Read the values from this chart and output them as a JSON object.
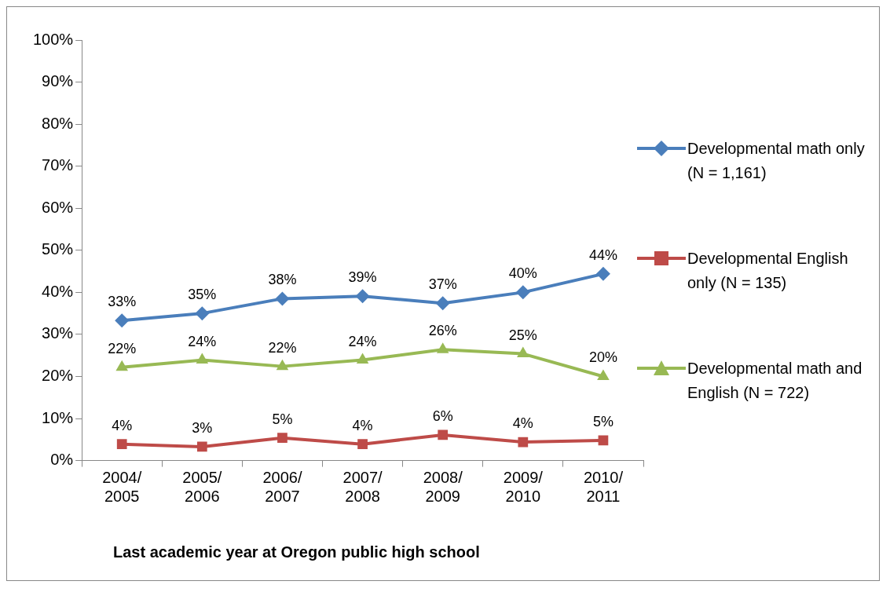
{
  "chart_data": {
    "type": "line",
    "xlabel": "Last academic year at Oregon public high school",
    "categories": [
      "2004/ 2005",
      "2005/ 2006",
      "2006/ 2007",
      "2007/ 2008",
      "2008/ 2009",
      "2009/ 2010",
      "2010/ 2011"
    ],
    "series": [
      {
        "name": "Developmental math only (N = 1,161)",
        "color": "#4a7ebb",
        "marker": "diamond",
        "values": [
          33.3,
          35.0,
          38.5,
          39.1,
          37.4,
          40.0,
          44.4
        ],
        "value_labels": [
          "33%",
          "35%",
          "38%",
          "39%",
          "37%",
          "40%",
          "44%"
        ]
      },
      {
        "name": "Developmental English only (N = 135)",
        "color": "#be4b48",
        "marker": "square",
        "values": [
          3.9,
          3.3,
          5.4,
          3.9,
          6.1,
          4.4,
          4.8
        ],
        "value_labels": [
          "4%",
          "3%",
          "5%",
          "4%",
          "6%",
          "4%",
          "5%"
        ]
      },
      {
        "name": "Developmental math and English (N = 722)",
        "color": "#98b954",
        "marker": "triangle",
        "values": [
          22.2,
          23.9,
          22.4,
          23.9,
          26.4,
          25.4,
          20.0
        ],
        "value_labels": [
          "22%",
          "24%",
          "22%",
          "24%",
          "26%",
          "25%",
          "20%"
        ]
      }
    ],
    "ylim": [
      0,
      100
    ],
    "yticks": [
      {
        "value": 0,
        "label": "0%"
      },
      {
        "value": 10,
        "label": "10%"
      },
      {
        "value": 20,
        "label": "20%"
      },
      {
        "value": 30,
        "label": "30%"
      },
      {
        "value": 40,
        "label": "40%"
      },
      {
        "value": 50,
        "label": "50%"
      },
      {
        "value": 60,
        "label": "60%"
      },
      {
        "value": 70,
        "label": "70%"
      },
      {
        "value": 80,
        "label": "80%"
      },
      {
        "value": 90,
        "label": "90%"
      },
      {
        "value": 100,
        "label": "100%"
      }
    ],
    "grid": false,
    "legend": "right"
  }
}
